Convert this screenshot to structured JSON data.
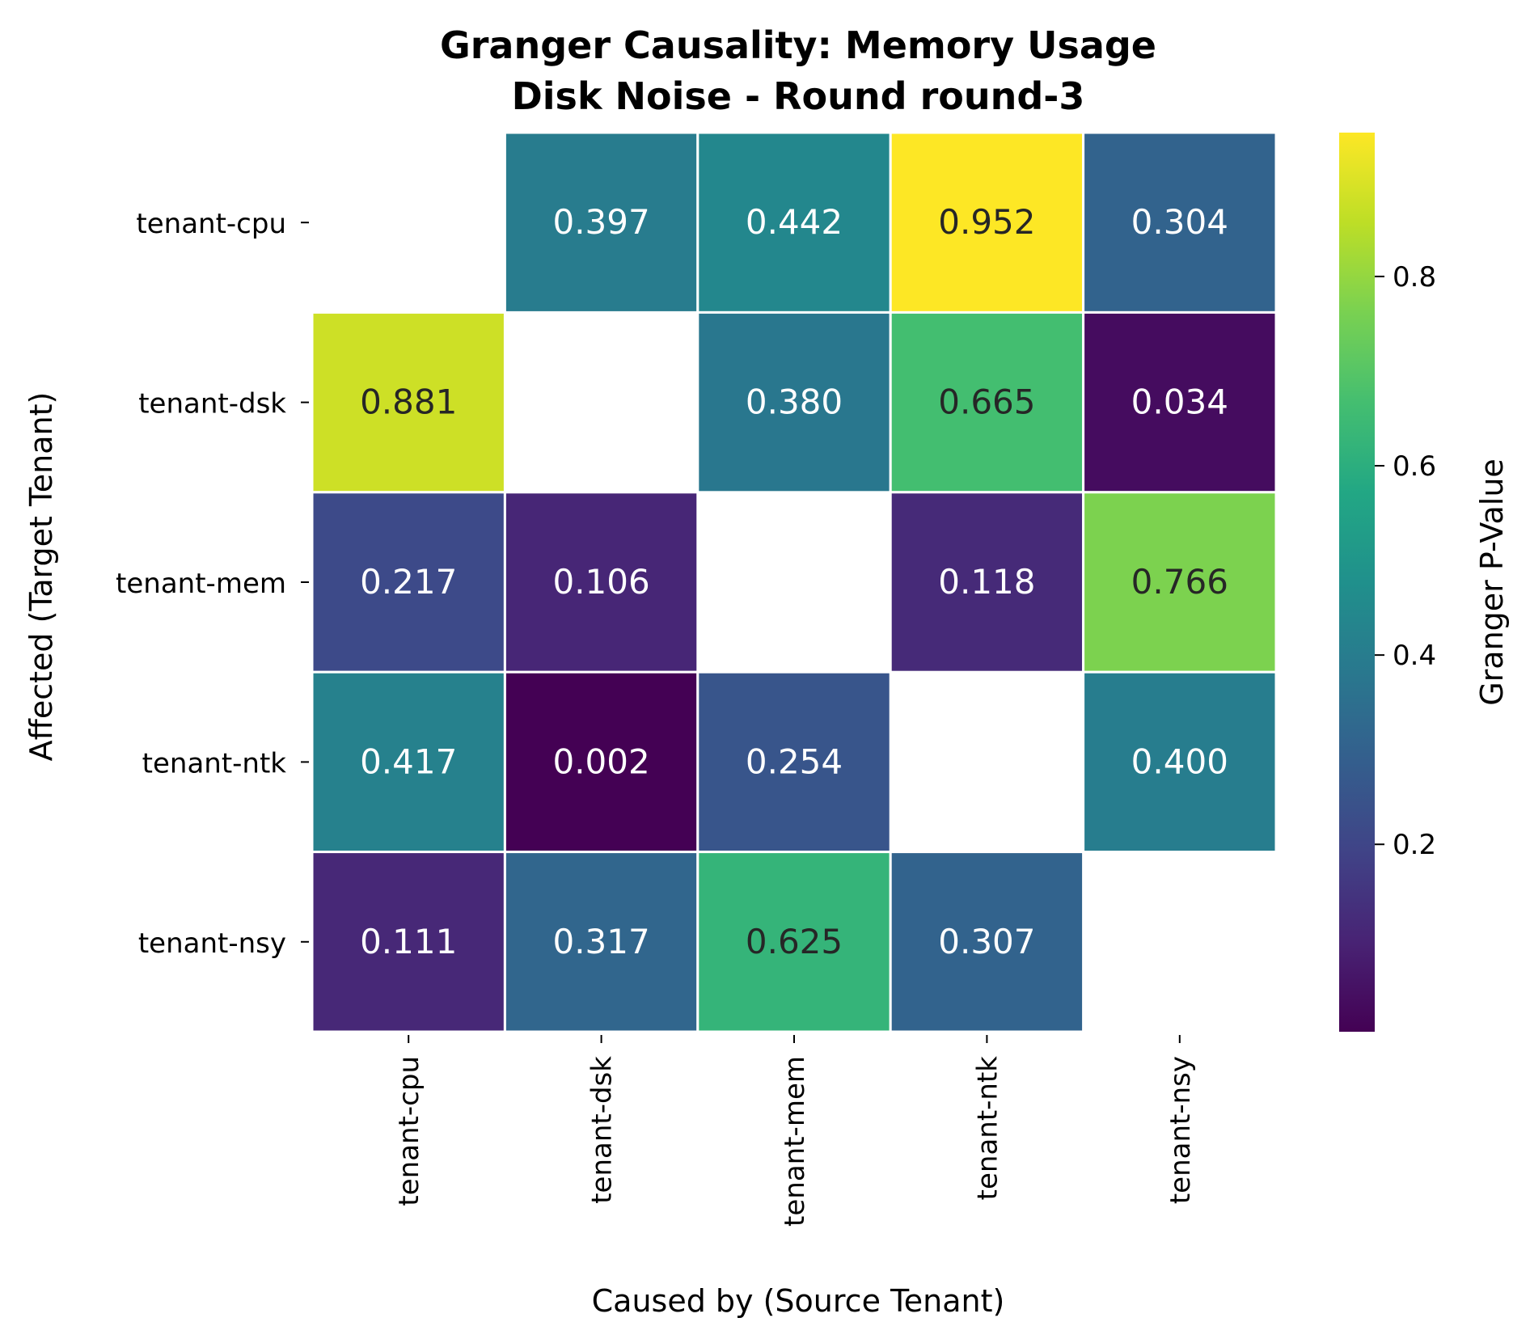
{
  "chart_data": {
    "type": "heatmap",
    "title_line1": "Granger Causality: Memory Usage",
    "title_line2": "Disk Noise - Round round-3",
    "xlabel": "Caused by (Source Tenant)",
    "ylabel": "Affected (Target Tenant)",
    "x_categories": [
      "tenant-cpu",
      "tenant-dsk",
      "tenant-mem",
      "tenant-ntk",
      "tenant-nsy"
    ],
    "y_categories": [
      "tenant-cpu",
      "tenant-dsk",
      "tenant-mem",
      "tenant-ntk",
      "tenant-nsy"
    ],
    "values": [
      [
        null,
        0.397,
        0.442,
        0.952,
        0.304
      ],
      [
        0.881,
        null,
        0.38,
        0.665,
        0.034
      ],
      [
        0.217,
        0.106,
        null,
        0.118,
        0.766
      ],
      [
        0.417,
        0.002,
        0.254,
        null,
        0.4
      ],
      [
        0.111,
        0.317,
        0.625,
        0.307,
        null
      ]
    ],
    "colorbar": {
      "label": "Granger P-Value",
      "colormap": "viridis",
      "vmin": 0.002,
      "vmax": 0.952,
      "ticks": [
        0.2,
        0.4,
        0.6,
        0.8
      ],
      "tick_labels": [
        "0.2",
        "0.4",
        "0.6",
        "0.8"
      ]
    },
    "cell_border_color": "#ffffff",
    "dark_text_color": "#262626",
    "light_text_color": "#ffffff",
    "annotation_format": "3 decimals"
  }
}
